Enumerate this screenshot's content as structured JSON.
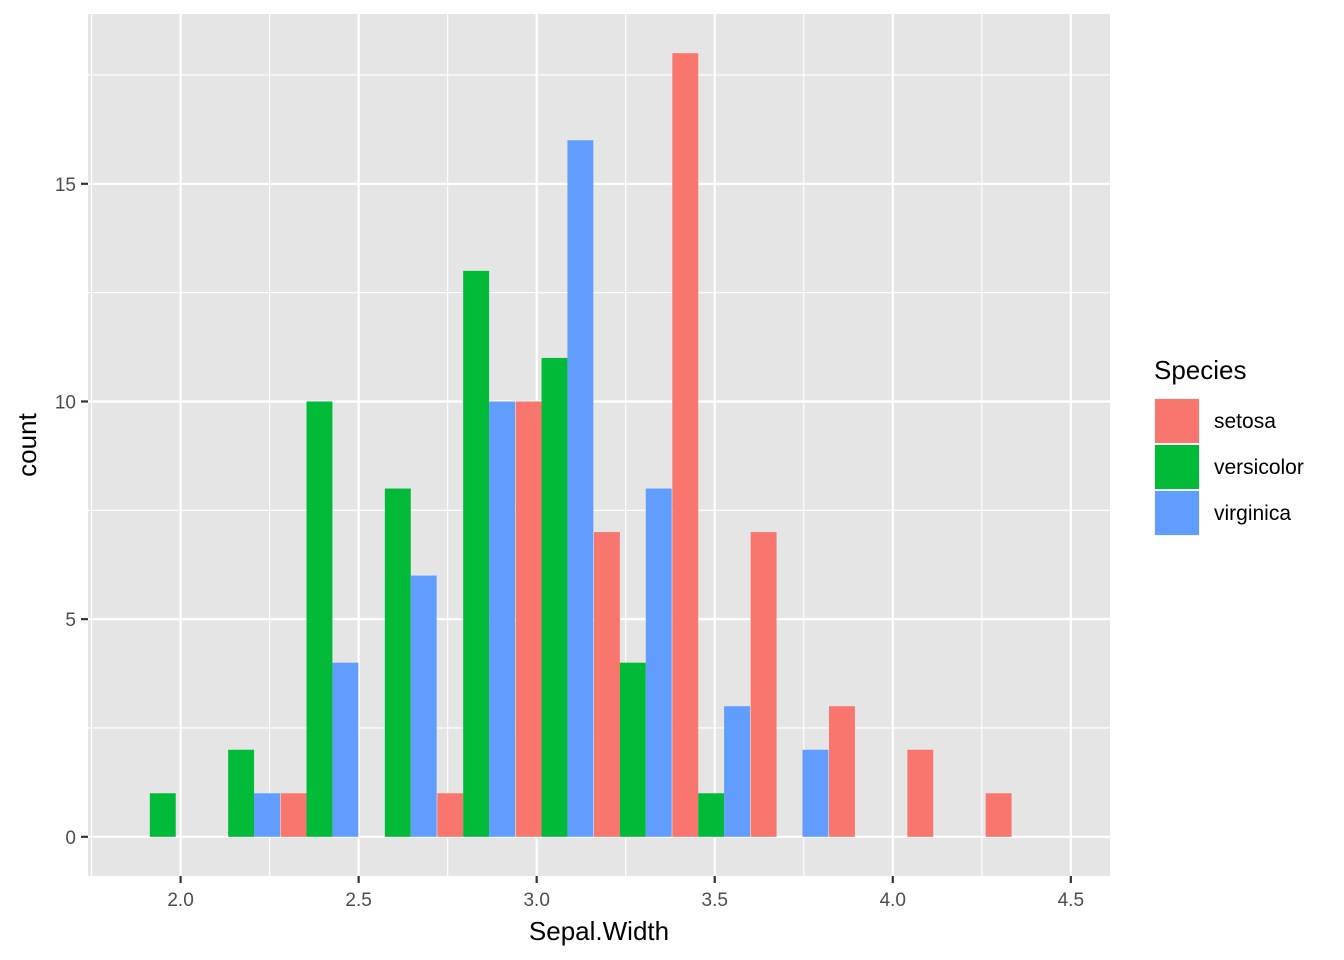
{
  "chart_data": {
    "type": "bar",
    "title": "",
    "xlabel": "Sepal.Width",
    "ylabel": "count",
    "x_ticks": [
      "2.0",
      "2.5",
      "3.0",
      "3.5",
      "4.0",
      "4.5"
    ],
    "y_ticks": [
      "0",
      "5",
      "10",
      "15"
    ],
    "xlim": [
      1.74,
      4.61
    ],
    "ylim": [
      -0.9,
      18.9
    ],
    "grid": true,
    "bar_position": "dodge",
    "bins": [
      1.95,
      2.17,
      2.39,
      2.61,
      2.83,
      3.05,
      3.27,
      3.49,
      3.71,
      3.93,
      4.15,
      4.37
    ],
    "bin_width": 0.2182,
    "legend": {
      "title": "Species",
      "position": "right"
    },
    "series": [
      {
        "name": "setosa",
        "color": "#F8766D",
        "values": [
          0,
          0,
          1,
          0,
          1,
          10,
          7,
          18,
          7,
          3,
          2,
          1
        ]
      },
      {
        "name": "versicolor",
        "color": "#00BA38",
        "values": [
          1,
          2,
          10,
          8,
          13,
          11,
          4,
          1,
          0,
          0,
          0,
          0
        ]
      },
      {
        "name": "virginica",
        "color": "#619CFF",
        "values": [
          0,
          1,
          4,
          6,
          10,
          16,
          8,
          3,
          2,
          0,
          0,
          0
        ]
      }
    ]
  }
}
